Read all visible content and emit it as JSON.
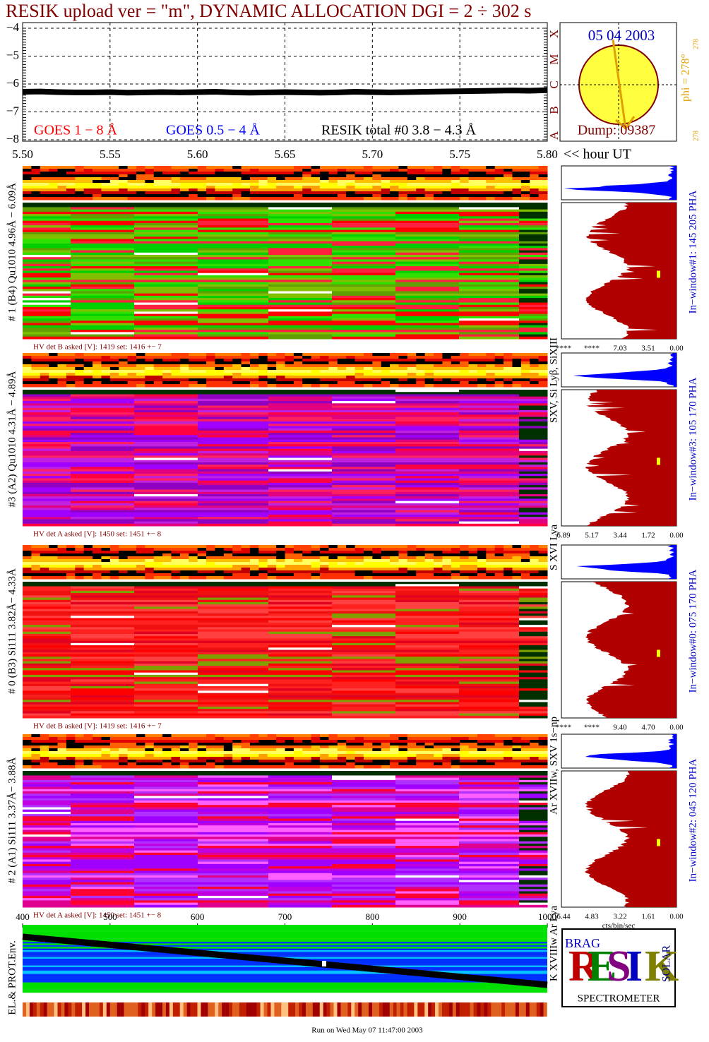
{
  "header": {
    "title": "RESIK upload ver = \"m\", DYNAMIC ALLOCATION  DGI =   2 ÷ 302 s"
  },
  "chart_data": {
    "type": "line",
    "x": [
      5.5,
      5.51,
      5.52,
      5.53,
      5.54,
      5.55,
      5.56,
      5.57,
      5.58,
      5.59,
      5.6,
      5.61,
      5.62,
      5.63,
      5.64,
      5.65,
      5.66,
      5.67,
      5.68,
      5.69,
      5.7,
      5.71,
      5.72,
      5.73,
      5.74,
      5.75,
      5.76,
      5.77,
      5.78,
      5.79,
      5.8
    ],
    "series": [
      {
        "name": "RESIK total #0  3.8 − 4.3 Å",
        "color": "#000000",
        "values": [
          -6.28,
          -6.27,
          -6.29,
          -6.3,
          -6.3,
          -6.29,
          -6.31,
          -6.3,
          -6.29,
          -6.3,
          -6.29,
          -6.28,
          -6.3,
          -6.31,
          -6.3,
          -6.29,
          -6.3,
          -6.31,
          -6.3,
          -6.28,
          -6.29,
          -6.3,
          -6.29,
          -6.28,
          -6.27,
          -6.26,
          -6.25,
          -6.24,
          -6.23,
          -6.24,
          -6.22
        ]
      }
    ],
    "annotations": [
      {
        "text": "GOES 1 − 8 Å",
        "color": "#ff0000"
      },
      {
        "text": "GOES 0.5 − 4 Å",
        "color": "#0000ff"
      }
    ],
    "xlim": [
      5.5,
      5.8
    ],
    "xticks": [
      {
        "value": 5.5,
        "label": "5.50"
      },
      {
        "value": 5.55,
        "label": "5.55"
      },
      {
        "value": 5.6,
        "label": "5.60"
      },
      {
        "value": 5.65,
        "label": "5.65"
      },
      {
        "value": 5.7,
        "label": "5.70"
      },
      {
        "value": 5.75,
        "label": "5.75"
      },
      {
        "value": 5.8,
        "label": "5.80"
      }
    ],
    "xlabel": "<< hour UT",
    "ylim": [
      -8,
      -4
    ],
    "yticks": [
      {
        "value": -4,
        "label": "−4"
      },
      {
        "value": -5,
        "label": "−5"
      },
      {
        "value": -6,
        "label": "−6"
      },
      {
        "value": -7,
        "label": "−7"
      },
      {
        "value": -8,
        "label": "−8"
      }
    ],
    "grid": true,
    "flare_classes": [
      "A",
      "B",
      "C",
      "M",
      "X"
    ]
  },
  "sun": {
    "date": "05 04 2003",
    "dump": "Dump: 09387",
    "phi": "phi = 278°",
    "phi_ticks": [
      "278",
      "278"
    ]
  },
  "panels": [
    {
      "label": "# 1 (B4) Qu1010 4.96Å − 6.09Å",
      "hv": "HV det B asked [V]:  1419 set:  1416 +−   7",
      "line_id": "SXV, Si Lyβ, SiXIII",
      "window": "In−window#1:  145 205 PHA",
      "hist_ticks": [
        "****",
        "****",
        "7.03",
        "3.51",
        "0.00"
      ]
    },
    {
      "label": "#3 (A2) Qu1010  4.31Å − 4.89Å",
      "hv": "HV det A asked [V]:  1450 set:  1451 +−   8",
      "line_id": "S XVI Lya",
      "window": "In−window#3:  105 170 PHA",
      "hist_ticks": [
        "6.89",
        "5.17",
        "3.44",
        "1.72",
        "0.00"
      ]
    },
    {
      "label": "# 0 (B3) Si111  3.82Å− 4.33Å",
      "hv": "HV det B asked [V]:  1419 set:  1416 +−   7",
      "line_id": "Ar XVIIw,  SXV 1s−np",
      "window": "In−window#0:  075 170 PHA",
      "hist_ticks": [
        "****",
        "****",
        "9.40",
        "4.70",
        "0.00"
      ]
    },
    {
      "label": "# 2 (A1) Si111  3.37Å− 3.88Å",
      "hv": "HV det A asked [V]:  1450 set:  1451 +−   8",
      "line_id": "K XVIIIw  Ar Lya",
      "window": "In−window#2:  045 120 PHA",
      "hist_ticks": [
        "6.44",
        "4.83",
        "3.22",
        "1.61",
        "0.00"
      ]
    }
  ],
  "bottom": {
    "ylabel": "EL.& PROT.Env.",
    "xlim": [
      400,
      1000
    ],
    "xticks": [
      400,
      500,
      600,
      700,
      800,
      900,
      1000
    ],
    "hist_unit": "cts/bin/sec"
  },
  "logo": {
    "letters": [
      "R",
      "E",
      "S",
      "I",
      "K"
    ],
    "small": [
      "BRAG",
      "SOLAR"
    ],
    "name": "SPECTROMETER"
  },
  "footer": "Run on Wed May 07 11:47:00 2003"
}
